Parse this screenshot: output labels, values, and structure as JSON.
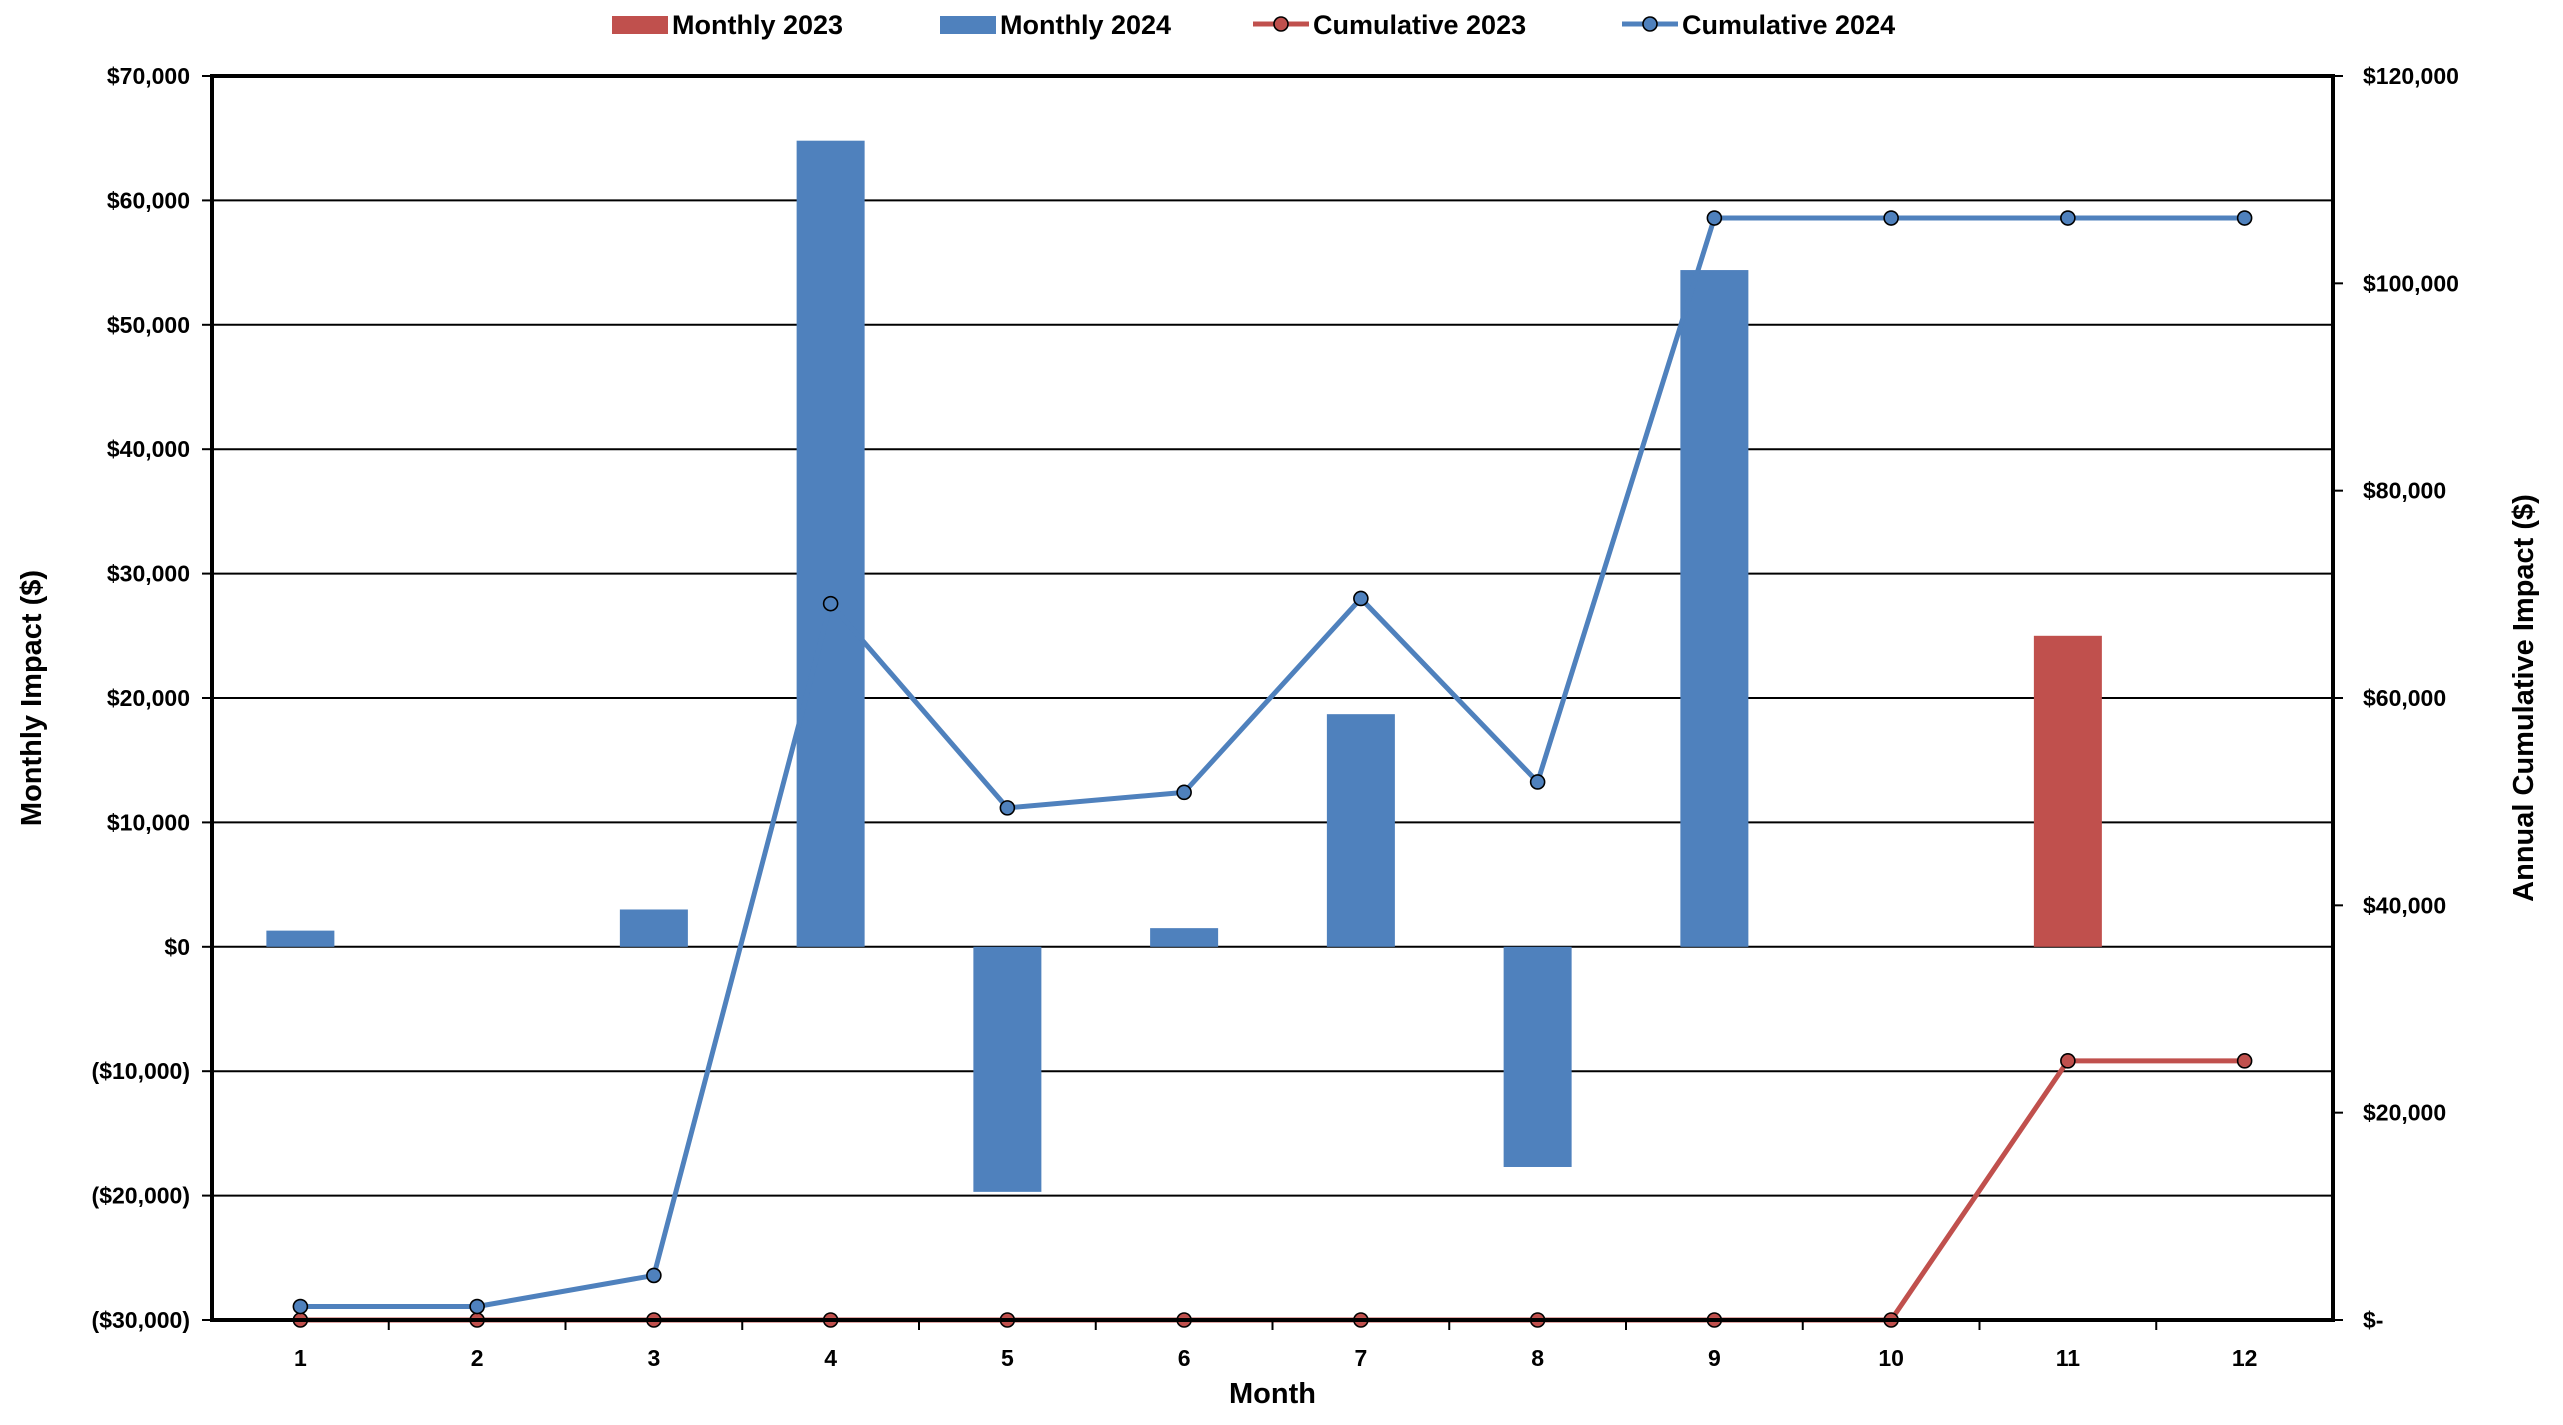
{
  "chart_data": {
    "type": "bar",
    "categories": [
      "1",
      "2",
      "3",
      "4",
      "5",
      "6",
      "7",
      "8",
      "9",
      "10",
      "11",
      "12"
    ],
    "series": [
      {
        "name": "Monthly 2023",
        "kind": "bar",
        "axis": "left",
        "color": "#C0504D",
        "values": [
          0,
          0,
          0,
          0,
          0,
          0,
          0,
          0,
          0,
          0,
          25000,
          0
        ]
      },
      {
        "name": "Monthly 2024",
        "kind": "bar",
        "axis": "left",
        "color": "#4F81BD",
        "values": [
          1300,
          0,
          3000,
          64800,
          -19700,
          1500,
          18700,
          -17700,
          54400,
          0,
          0,
          0
        ]
      },
      {
        "name": "Cumulative 2023",
        "kind": "line",
        "axis": "right",
        "color": "#C0504D",
        "values": [
          0,
          0,
          0,
          0,
          0,
          0,
          0,
          0,
          0,
          0,
          25000,
          25000
        ]
      },
      {
        "name": "Cumulative 2024",
        "kind": "line",
        "axis": "right",
        "color": "#4F81BD",
        "values": [
          1300,
          1300,
          4300,
          69100,
          49400,
          50900,
          69600,
          51900,
          106300,
          106300,
          106300,
          106300
        ]
      }
    ],
    "xlabel": "Month",
    "ylabel": "Monthly Impact ($)",
    "y2label": "Annual Cumulative Impact ($)",
    "ylim": [
      -30000,
      70000
    ],
    "y2lim": [
      0,
      120000
    ],
    "yticks": [
      {
        "value": 70000,
        "label": "$70,000"
      },
      {
        "value": 60000,
        "label": "$60,000"
      },
      {
        "value": 50000,
        "label": "$50,000"
      },
      {
        "value": 40000,
        "label": "$40,000"
      },
      {
        "value": 30000,
        "label": "$30,000"
      },
      {
        "value": 20000,
        "label": "$20,000"
      },
      {
        "value": 10000,
        "label": "$10,000"
      },
      {
        "value": 0,
        "label": "$0"
      },
      {
        "value": -10000,
        "label": "($10,000)"
      },
      {
        "value": -20000,
        "label": "($20,000)"
      },
      {
        "value": -30000,
        "label": "($30,000)"
      }
    ],
    "y2ticks": [
      {
        "value": 120000,
        "label": "$120,000"
      },
      {
        "value": 100000,
        "label": "$100,000"
      },
      {
        "value": 80000,
        "label": "$80,000"
      },
      {
        "value": 60000,
        "label": "$60,000"
      },
      {
        "value": 40000,
        "label": "$40,000"
      },
      {
        "value": 20000,
        "label": "$20,000"
      },
      {
        "value": 0,
        "label": "$-"
      }
    ],
    "negative_tick_color": "#FF0000",
    "grid": true,
    "legend_position": "top"
  }
}
